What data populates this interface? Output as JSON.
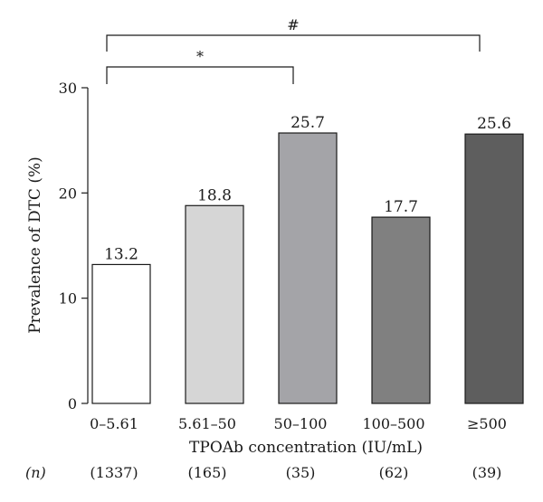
{
  "chart_data": {
    "type": "bar",
    "title": "",
    "xlabel": "TPOAb concentration (IU/mL)",
    "ylabel": "Prevalence of DTC (%)",
    "ylim": [
      0,
      30
    ],
    "yticks": [
      0,
      10,
      20,
      30
    ],
    "categories": [
      "0–5.61",
      "5.61–50",
      "50–100",
      "100–500",
      "≥500"
    ],
    "values": [
      13.2,
      18.8,
      25.7,
      17.7,
      25.6
    ],
    "data_labels": [
      "13.2",
      "18.8",
      "25.7",
      "17.7",
      "25.6"
    ],
    "bar_colors": [
      "#ffffff",
      "#d6d6d6",
      "#a4a4a8",
      "#808080",
      "#5e5e5e"
    ],
    "n_row": {
      "label": "(n)",
      "values": [
        "(1337)",
        "(165)",
        "(35)",
        "(62)",
        "(39)"
      ]
    },
    "significance": [
      {
        "from": 0,
        "to": 4,
        "symbol": "#"
      },
      {
        "from": 0,
        "to": 2,
        "symbol": "*"
      }
    ],
    "grid": false,
    "legend": "none"
  }
}
